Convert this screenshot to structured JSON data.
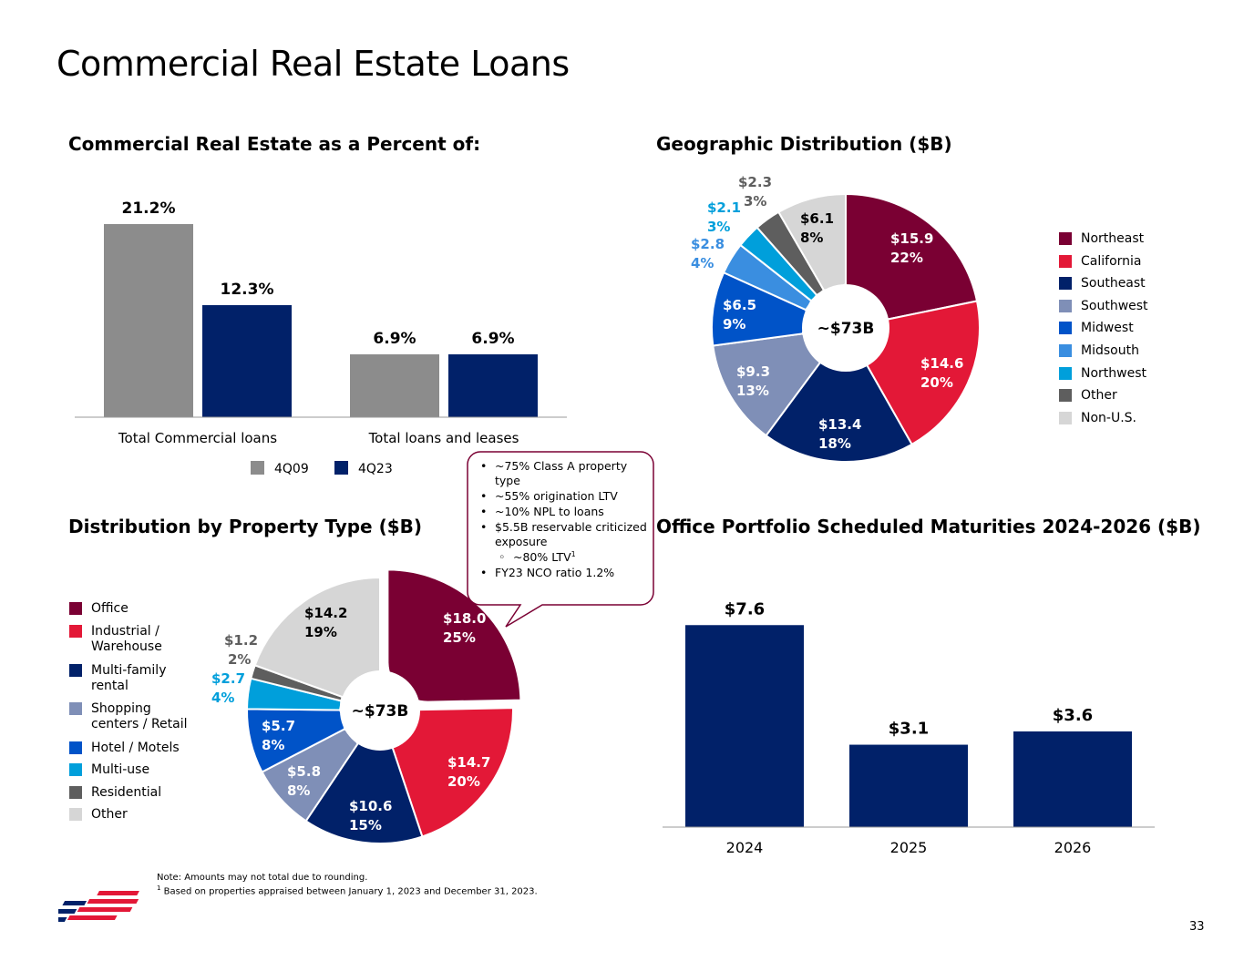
{
  "page": {
    "title": "Commercial Real Estate Loans",
    "page_number": "33",
    "note_line1": "Note: Amounts may not total due to rounding.",
    "footnote_marker": "1",
    "note_line2": " Based on properties appraised between January 1, 2023 and December 31, 2023."
  },
  "colors": {
    "maroon": "#7A0033",
    "red": "#E31837",
    "navy": "#012169",
    "periwinkle": "#7F8FB7",
    "blue": "#0053C8",
    "mid_blue": "#3A8EE0",
    "cyan": "#009FDB",
    "dark_gray": "#5E5E5E",
    "light_gray": "#D6D6D6",
    "bar_gray": "#8C8C8C"
  },
  "cre_percent": {
    "title": "Commercial Real Estate as a Percent of:"
  },
  "callout": {
    "b1": "~75% Class A property type",
    "b2": "~55% origination LTV",
    "b3": "~10% NPL to loans",
    "b4": "$5.5B reservable criticized exposure",
    "sub1": "~80% LTV",
    "sub1_sup": "1",
    "b5": "FY23 NCO ratio 1.2%"
  },
  "geo": {
    "title": "Geographic Distribution ($B)",
    "center": "~$73B"
  },
  "property": {
    "title": "Distribution by Property Type ($B)",
    "center": "~$73B"
  },
  "maturities": {
    "title": "Office Portfolio Scheduled Maturities 2024-2026 ($B)"
  },
  "chart_data": [
    {
      "id": "cre-percent",
      "type": "bar",
      "title": "Commercial Real Estate as a Percent of:",
      "categories": [
        "Total Commercial loans",
        "Total loans and leases"
      ],
      "series": [
        {
          "name": "4Q09",
          "values": [
            21.2,
            6.9
          ],
          "labels": [
            "21.2%",
            "6.9%"
          ],
          "color": "#8C8C8C"
        },
        {
          "name": "4Q23",
          "values": [
            12.3,
            6.9
          ],
          "labels": [
            "12.3%",
            "6.9%"
          ],
          "color": "#012169"
        }
      ],
      "ylim": [
        0,
        24
      ],
      "legend": "bottom"
    },
    {
      "id": "geo",
      "type": "pie",
      "title": "Geographic Distribution ($B)",
      "center_label": "~$73B",
      "legend": "right",
      "slices": [
        {
          "name": "Northeast",
          "value": 15.9,
          "label": "$15.9",
          "pct": "22%",
          "color": "#7A0033"
        },
        {
          "name": "California",
          "value": 14.6,
          "label": "$14.6",
          "pct": "20%",
          "color": "#E31837"
        },
        {
          "name": "Southeast",
          "value": 13.4,
          "label": "$13.4",
          "pct": "18%",
          "color": "#012169"
        },
        {
          "name": "Southwest",
          "value": 9.3,
          "label": "$9.3",
          "pct": "13%",
          "color": "#7F8FB7"
        },
        {
          "name": "Midwest",
          "value": 6.5,
          "label": "$6.5",
          "pct": "9%",
          "color": "#0053C8"
        },
        {
          "name": "Midsouth",
          "value": 2.8,
          "label": "$2.8",
          "pct": "4%",
          "color": "#3A8EE0"
        },
        {
          "name": "Northwest",
          "value": 2.1,
          "label": "$2.1",
          "pct": "3%",
          "color": "#009FDB"
        },
        {
          "name": "Other",
          "value": 2.3,
          "label": "$2.3",
          "pct": "3%",
          "color": "#5E5E5E"
        },
        {
          "name": "Non-U.S.",
          "value": 6.1,
          "label": "$6.1",
          "pct": "8%",
          "color": "#D6D6D6"
        }
      ]
    },
    {
      "id": "property",
      "type": "pie",
      "title": "Distribution by Property Type ($B)",
      "center_label": "~$73B",
      "legend": "left",
      "slices": [
        {
          "name": "Office",
          "value": 18.0,
          "label": "$18.0",
          "pct": "25%",
          "color": "#7A0033",
          "exploded": true
        },
        {
          "name": "Industrial / Warehouse",
          "value": 14.7,
          "label": "$14.7",
          "pct": "20%",
          "color": "#E31837"
        },
        {
          "name": "Multi-family rental",
          "value": 10.6,
          "label": "$10.6",
          "pct": "15%",
          "color": "#012169"
        },
        {
          "name": "Shopping centers / Retail",
          "value": 5.8,
          "label": "$5.8",
          "pct": "8%",
          "color": "#7F8FB7"
        },
        {
          "name": "Hotel / Motels",
          "value": 5.7,
          "label": "$5.7",
          "pct": "8%",
          "color": "#0053C8"
        },
        {
          "name": "Multi-use",
          "value": 2.7,
          "label": "$2.7",
          "pct": "4%",
          "color": "#009FDB"
        },
        {
          "name": "Residential",
          "value": 1.2,
          "label": "$1.2",
          "pct": "2%",
          "color": "#5E5E5E"
        },
        {
          "name": "Other",
          "value": 14.2,
          "label": "$14.2",
          "pct": "19%",
          "color": "#D6D6D6"
        }
      ]
    },
    {
      "id": "maturities",
      "type": "bar",
      "title": "Office Portfolio Scheduled Maturities 2024-2026 ($B)",
      "categories": [
        "2024",
        "2025",
        "2026"
      ],
      "values": [
        7.6,
        3.1,
        3.6
      ],
      "labels": [
        "$7.6",
        "$3.1",
        "$3.6"
      ],
      "color": "#012169",
      "ylim": [
        0,
        8.5
      ]
    }
  ]
}
